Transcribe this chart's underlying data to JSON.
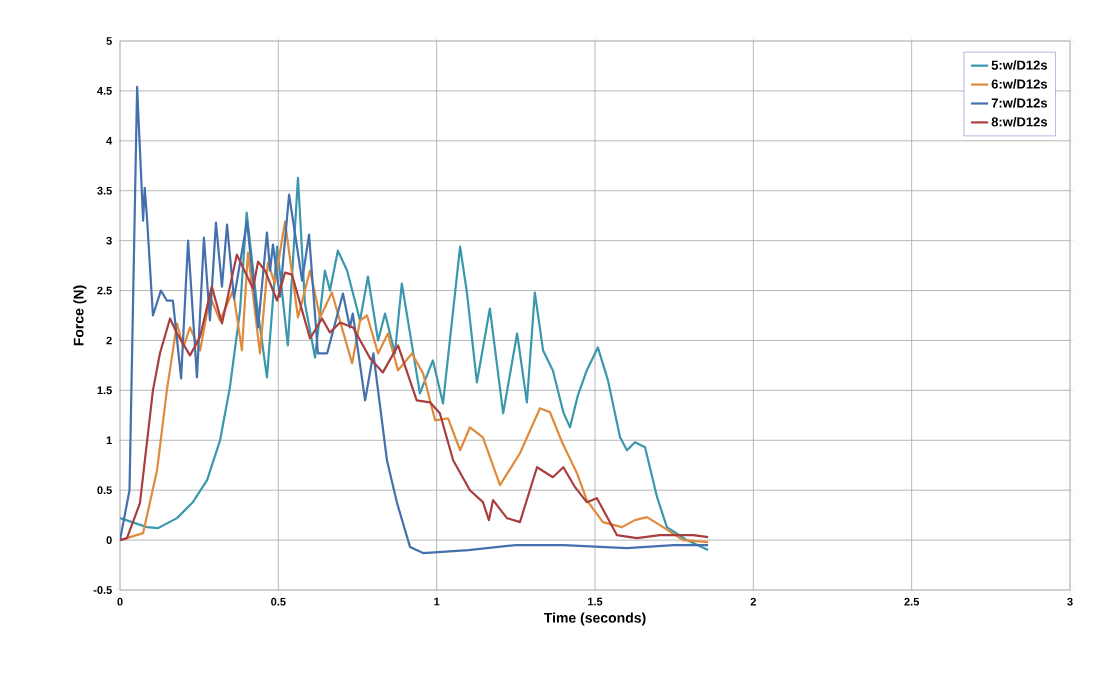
{
  "chart_data": {
    "type": "line",
    "xlabel": "Time (seconds)",
    "ylabel": "Force (N)",
    "xlim": [
      0,
      3
    ],
    "ylim": [
      -0.5,
      5
    ],
    "xticks": [
      0,
      0.5,
      1,
      1.5,
      2,
      2.5,
      3
    ],
    "yticks": [
      -0.5,
      0,
      0.5,
      1,
      1.5,
      2,
      2.5,
      3,
      3.5,
      4,
      4.5,
      5
    ],
    "grid": true,
    "legend": "top right",
    "marker": "none",
    "series": [
      {
        "name": "5:w/D12s",
        "color": "#3a97ad",
        "x": [
          0,
          0.085,
          0.12,
          0.18,
          0.23,
          0.275,
          0.316,
          0.347,
          0.379,
          0.4,
          0.432,
          0.464,
          0.496,
          0.53,
          0.562,
          0.584,
          0.616,
          0.647,
          0.663,
          0.688,
          0.717,
          0.758,
          0.783,
          0.815,
          0.837,
          0.868,
          0.89,
          0.947,
          0.988,
          1.02,
          1.074,
          1.096,
          1.127,
          1.168,
          1.21,
          1.254,
          1.285,
          1.31,
          1.336,
          1.367,
          1.4,
          1.421,
          1.446,
          1.474,
          1.509,
          1.541,
          1.579,
          1.601,
          1.626,
          1.658,
          1.696,
          1.727,
          1.79,
          1.857
        ],
        "values": [
          0.22,
          0.13,
          0.12,
          0.22,
          0.38,
          0.6,
          1.0,
          1.53,
          2.3,
          3.28,
          2.37,
          1.63,
          2.94,
          1.95,
          3.63,
          2.37,
          1.83,
          2.7,
          2.5,
          2.9,
          2.7,
          2.2,
          2.64,
          2.0,
          2.27,
          1.87,
          2.57,
          1.47,
          1.8,
          1.37,
          2.94,
          2.47,
          1.58,
          2.32,
          1.27,
          2.07,
          1.38,
          2.48,
          1.9,
          1.7,
          1.28,
          1.13,
          1.45,
          1.7,
          1.93,
          1.6,
          1.03,
          0.9,
          0.98,
          0.93,
          0.43,
          0.13,
          0,
          -0.1
        ]
      },
      {
        "name": "6:w/D12s",
        "color": "#e08a3c",
        "x": [
          0,
          0.073,
          0.117,
          0.148,
          0.18,
          0.2,
          0.221,
          0.253,
          0.284,
          0.316,
          0.357,
          0.385,
          0.404,
          0.442,
          0.467,
          0.489,
          0.521,
          0.562,
          0.6,
          0.632,
          0.669,
          0.733,
          0.758,
          0.78,
          0.815,
          0.846,
          0.878,
          0.922,
          0.957,
          0.995,
          1.036,
          1.074,
          1.105,
          1.146,
          1.2,
          1.263,
          1.326,
          1.358,
          1.396,
          1.443,
          1.474,
          1.525,
          1.585,
          1.626,
          1.664,
          1.715,
          1.778,
          1.857
        ],
        "values": [
          0,
          0.07,
          0.7,
          1.5,
          2.17,
          1.93,
          2.13,
          1.9,
          2.44,
          2.2,
          2.5,
          1.9,
          2.88,
          1.87,
          2.78,
          2.57,
          3.19,
          2.23,
          2.7,
          2.23,
          2.48,
          1.77,
          2.2,
          2.25,
          1.87,
          2.07,
          1.7,
          1.87,
          1.67,
          1.2,
          1.22,
          0.9,
          1.13,
          1.03,
          0.55,
          0.87,
          1.32,
          1.28,
          0.98,
          0.67,
          0.4,
          0.18,
          0.13,
          0.2,
          0.23,
          0.13,
          0,
          -0.02
        ]
      },
      {
        "name": "7:w/D12s",
        "color": "#4470ad",
        "x": [
          0,
          0.03,
          0.054,
          0.073,
          0.078,
          0.085,
          0.104,
          0.129,
          0.148,
          0.167,
          0.193,
          0.215,
          0.243,
          0.265,
          0.284,
          0.303,
          0.322,
          0.338,
          0.36,
          0.401,
          0.436,
          0.464,
          0.474,
          0.483,
          0.505,
          0.534,
          0.575,
          0.597,
          0.625,
          0.654,
          0.704,
          0.726,
          0.735,
          0.774,
          0.8,
          0.843,
          0.875,
          0.916,
          0.957,
          1.1,
          1.25,
          1.4,
          1.6,
          1.75,
          1.857
        ],
        "values": [
          0,
          0.5,
          4.54,
          3.2,
          3.53,
          3.24,
          2.25,
          2.5,
          2.4,
          2.4,
          1.62,
          3.0,
          1.63,
          3.03,
          2.2,
          3.18,
          2.54,
          3.16,
          2.42,
          3.19,
          2.13,
          3.08,
          2.7,
          2.96,
          2.44,
          3.46,
          2.6,
          3.06,
          1.87,
          1.87,
          2.47,
          2.13,
          2.27,
          1.4,
          1.87,
          0.8,
          0.37,
          -0.07,
          -0.13,
          -0.1,
          -0.05,
          -0.05,
          -0.08,
          -0.05,
          -0.05
        ]
      },
      {
        "name": "8:w/D12s",
        "color": "#a83e3e",
        "x": [
          0,
          0.022,
          0.063,
          0.104,
          0.126,
          0.158,
          0.18,
          0.221,
          0.253,
          0.29,
          0.322,
          0.369,
          0.42,
          0.436,
          0.458,
          0.496,
          0.521,
          0.543,
          0.6,
          0.638,
          0.663,
          0.695,
          0.736,
          0.79,
          0.83,
          0.878,
          0.937,
          0.979,
          1.01,
          1.052,
          1.105,
          1.146,
          1.165,
          1.178,
          1.222,
          1.263,
          1.304,
          1.317,
          1.367,
          1.4,
          1.437,
          1.474,
          1.506,
          1.569,
          1.632,
          1.705,
          1.81,
          1.857
        ],
        "values": [
          0,
          0.02,
          0.37,
          1.5,
          1.87,
          2.22,
          2.07,
          1.85,
          2.04,
          2.54,
          2.17,
          2.86,
          2.52,
          2.79,
          2.7,
          2.4,
          2.68,
          2.66,
          2.02,
          2.22,
          2.08,
          2.18,
          2.13,
          1.82,
          1.68,
          1.95,
          1.4,
          1.38,
          1.27,
          0.8,
          0.5,
          0.38,
          0.2,
          0.4,
          0.22,
          0.18,
          0.6,
          0.73,
          0.63,
          0.73,
          0.53,
          0.38,
          0.42,
          0.05,
          0.02,
          0.05,
          0.05,
          0.03
        ]
      }
    ]
  }
}
